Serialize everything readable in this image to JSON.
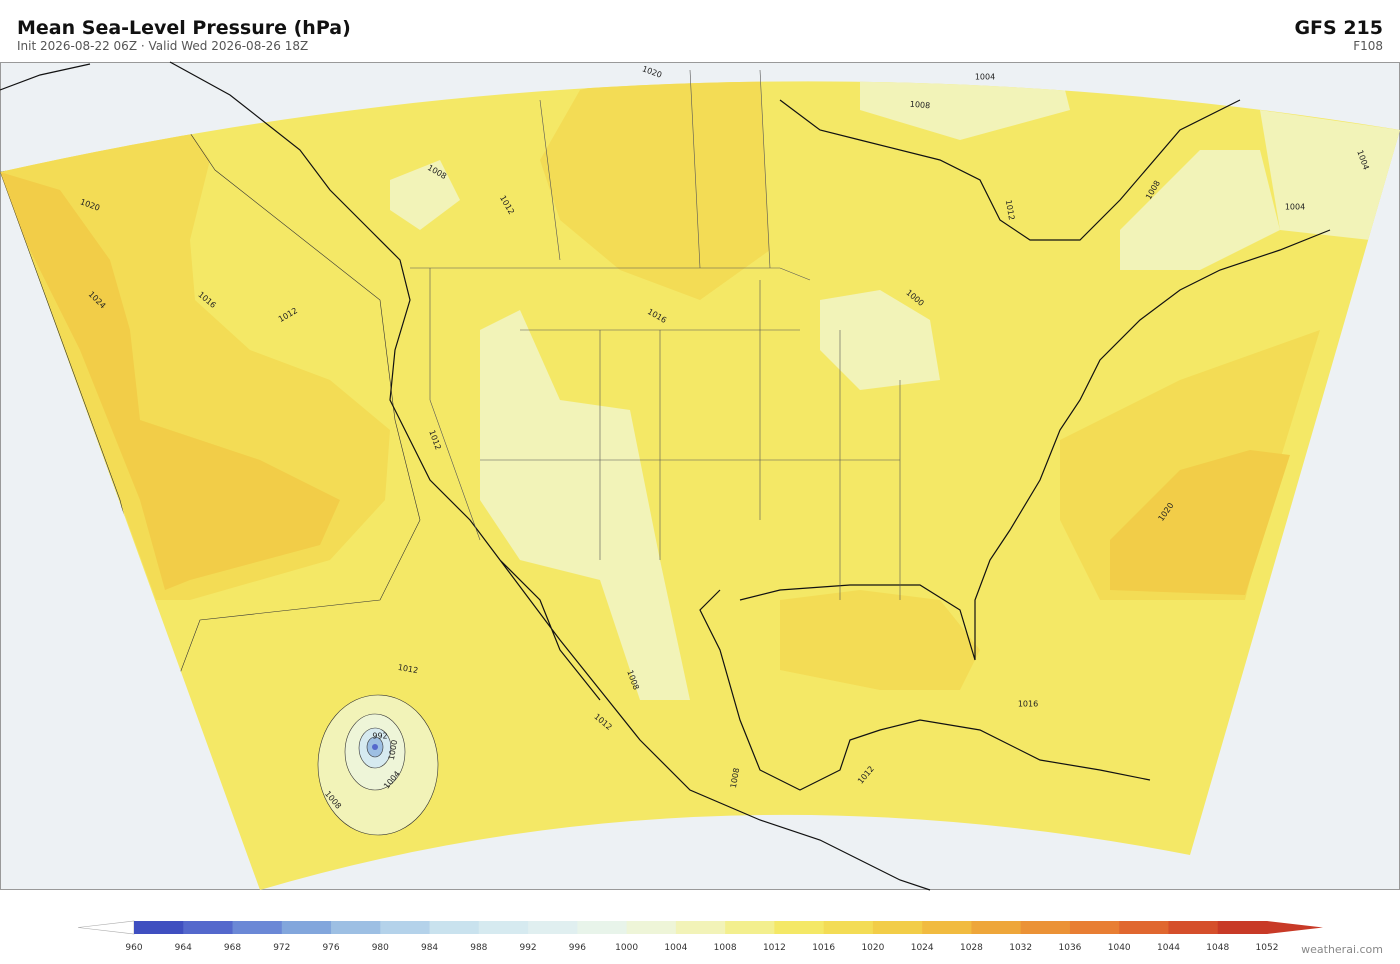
{
  "header": {
    "title": "Mean Sea-Level Pressure  (hPa)",
    "subtitle": "Init 2026-08-22 06Z  ·  Valid Wed 2026-08-26 18Z",
    "model": "GFS  215",
    "forecast_hour": "F108"
  },
  "contour_labels": [
    "1020",
    "1024",
    "1016",
    "1012",
    "1008",
    "1012",
    "1020",
    "1004",
    "1008",
    "1012",
    "1008",
    "1004",
    "1004",
    "1016",
    "1000",
    "1012",
    "1020",
    "1012",
    "1008",
    "1012",
    "1016",
    "1008",
    "1012",
    "1004",
    "1008",
    "1000",
    "992"
  ],
  "colorbar": {
    "ticks": [
      960,
      964,
      968,
      972,
      976,
      980,
      984,
      988,
      992,
      996,
      1000,
      1004,
      1008,
      1012,
      1016,
      1020,
      1024,
      1028,
      1032,
      1036,
      1040,
      1044,
      1048,
      1052
    ],
    "colors": [
      "#3f4fc0",
      "#5468cc",
      "#6b88d6",
      "#82a6dc",
      "#9dbfe3",
      "#b4d2ea",
      "#c9e2ee",
      "#d6eaf0",
      "#e0eff0",
      "#e8f4ea",
      "#eef5d8",
      "#f2f3b8",
      "#f3ef8e",
      "#f4e866",
      "#f3dc55",
      "#f2cd48",
      "#f1bb40",
      "#eea63a",
      "#eb9236",
      "#e87e33",
      "#e0672f",
      "#d54f2b",
      "#c83a27"
    ]
  },
  "footer": {
    "credit": "weatherai.com"
  }
}
